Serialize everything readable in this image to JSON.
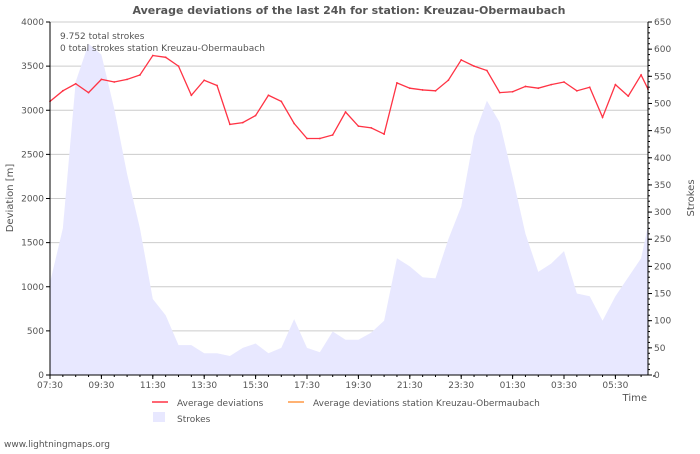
{
  "chart_data": {
    "type": "line",
    "title": "Average deviations of the last 24h for station: Kreuzau-Obermaubach",
    "xlabel": "Time",
    "ylabel": "Deviation  [m]",
    "y2label": "Strokes",
    "ylim": [
      0,
      4000
    ],
    "y2lim": [
      0,
      650
    ],
    "yticks": [
      0,
      500,
      1000,
      1500,
      2000,
      2500,
      3000,
      3500,
      4000
    ],
    "y2ticks": [
      0,
      50,
      100,
      150,
      200,
      250,
      300,
      350,
      400,
      450,
      500,
      550,
      600,
      650
    ],
    "xticks": [
      "07:30",
      "09:30",
      "11:30",
      "13:30",
      "15:30",
      "17:30",
      "19:30",
      "21:30",
      "23:30",
      "01:30",
      "03:30",
      "05:30"
    ],
    "grid": true,
    "annotations": [
      "9.752 total strokes",
      "0 total strokes station Kreuzau-Obermaubach"
    ],
    "legend": [
      "Average deviations",
      "Average deviations station Kreuzau-Obermaubach",
      "Strokes"
    ],
    "legend_placement": "bottom",
    "series": [
      {
        "name": "Average deviations",
        "axis": "left",
        "color": "#ff3344",
        "values": [
          3100,
          3220,
          3300,
          3200,
          3350,
          3320,
          3350,
          3400,
          3620,
          3600,
          3500,
          3170,
          3340,
          3280,
          2840,
          2860,
          2940,
          3170,
          3100,
          2850,
          2680,
          2680,
          2720,
          2980,
          2820,
          2800,
          2730,
          3310,
          3250,
          3230,
          3220,
          3340,
          3570,
          3500,
          3450,
          3200,
          3210,
          3270,
          3250,
          3290,
          3320,
          3220,
          3260,
          2920,
          3290,
          3160,
          3400,
          3240
        ]
      },
      {
        "name": "Average deviations station Kreuzau-Obermaubach",
        "axis": "left",
        "color": "#ff9944",
        "values": []
      },
      {
        "name": "Strokes",
        "axis": "right",
        "color": "#e8e8ff",
        "values": [
          170,
          270,
          540,
          610,
          590,
          490,
          370,
          270,
          140,
          110,
          55,
          55,
          40,
          40,
          35,
          50,
          58,
          40,
          50,
          103,
          50,
          42,
          80,
          65,
          65,
          78,
          100,
          215,
          200,
          180,
          178,
          250,
          310,
          440,
          505,
          465,
          365,
          260,
          190,
          205,
          228,
          150,
          145,
          100,
          145,
          180,
          215,
          275
        ]
      }
    ]
  },
  "footer": "www.lightningmaps.org"
}
